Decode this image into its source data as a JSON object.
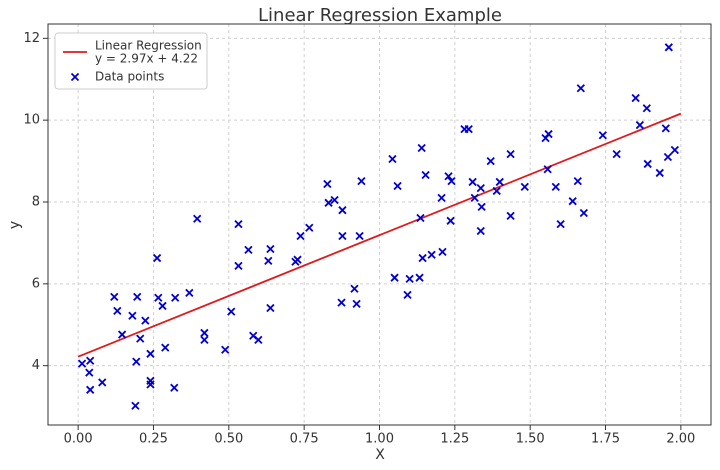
{
  "chart_data": {
    "type": "scatter",
    "title": "Linear Regression Example",
    "x_label": "X",
    "y_label": "y",
    "xlim": [
      -0.1,
      2.1
    ],
    "ylim": [
      2.55,
      12.35
    ],
    "xticks": [
      {
        "value": 0,
        "label": "0.00"
      },
      {
        "value": 0.25,
        "label": "0.25"
      },
      {
        "value": 0.5,
        "label": "0.50"
      },
      {
        "value": 0.75,
        "label": "0.75"
      },
      {
        "value": 1,
        "label": "1.00"
      },
      {
        "value": 1.25,
        "label": "1.25"
      },
      {
        "value": 1.5,
        "label": "1.50"
      },
      {
        "value": 1.75,
        "label": "1.75"
      },
      {
        "value": 2,
        "label": "2.00"
      }
    ],
    "yticks": [
      4,
      6,
      8,
      10,
      12
    ],
    "grid": true,
    "legend": "upper left",
    "series": [
      {
        "name": "Linear Regression",
        "equation": "y = 2.97x + 4.22",
        "type": "line",
        "color": "#e0191c",
        "x": [
          0,
          2
        ],
        "values": [
          4.22,
          10.16
        ]
      },
      {
        "name": "Data points",
        "type": "scatter",
        "color": "#0000d0",
        "x": [
          0.013,
          0.04,
          0.037,
          0.04,
          0.08,
          0.12,
          0.13,
          0.146,
          0.18,
          0.196,
          0.193,
          0.206,
          0.19,
          0.223,
          0.24,
          0.24,
          0.24,
          0.262,
          0.266,
          0.28,
          0.289,
          0.322,
          0.319,
          0.369,
          0.395,
          0.419,
          0.419,
          0.488,
          0.508,
          0.532,
          0.532,
          0.565,
          0.581,
          0.598,
          0.631,
          0.638,
          0.638,
          0.721,
          0.728,
          0.738,
          0.767,
          0.827,
          0.831,
          0.851,
          0.877,
          0.877,
          0.874,
          0.917,
          0.924,
          0.934,
          0.94,
          1.043,
          1.06,
          1.05,
          1.093,
          1.1,
          1.133,
          1.136,
          1.14,
          1.153,
          1.143,
          1.173,
          1.209,
          1.206,
          1.229,
          1.239,
          1.236,
          1.282,
          1.296,
          1.309,
          1.316,
          1.336,
          1.339,
          1.336,
          1.369,
          1.389,
          1.399,
          1.435,
          1.435,
          1.482,
          1.551,
          1.561,
          1.558,
          1.585,
          1.601,
          1.641,
          1.658,
          1.668,
          1.678,
          1.741,
          1.787,
          1.85,
          1.864,
          1.887,
          1.89,
          1.93,
          1.95,
          1.957,
          1.96,
          1.98
        ],
        "values": [
          4.05,
          4.12,
          3.83,
          3.41,
          3.59,
          5.68,
          5.34,
          4.76,
          5.22,
          5.68,
          4.1,
          4.66,
          3.02,
          5.1,
          4.29,
          3.63,
          3.54,
          6.63,
          5.66,
          5.46,
          4.44,
          5.66,
          3.46,
          5.78,
          7.59,
          4.8,
          4.63,
          4.39,
          5.32,
          7.46,
          6.44,
          6.83,
          4.73,
          4.63,
          6.56,
          6.85,
          5.41,
          6.54,
          6.59,
          7.17,
          7.37,
          8.44,
          7.98,
          8.05,
          7.8,
          7.17,
          5.54,
          5.88,
          5.51,
          7.17,
          8.51,
          9.05,
          8.39,
          6.15,
          5.73,
          6.12,
          6.15,
          7.61,
          9.32,
          8.66,
          6.63,
          6.71,
          6.78,
          8.1,
          8.63,
          8.51,
          7.54,
          9.78,
          9.78,
          8.49,
          8.1,
          8.34,
          7.88,
          7.29,
          9.0,
          8.27,
          8.49,
          9.17,
          7.66,
          8.37,
          9.56,
          9.66,
          8.8,
          8.37,
          7.46,
          8.02,
          8.51,
          10.78,
          7.73,
          9.63,
          9.17,
          10.54,
          9.88,
          10.29,
          8.93,
          8.71,
          9.8,
          9.1,
          11.78,
          9.27
        ]
      }
    ]
  }
}
